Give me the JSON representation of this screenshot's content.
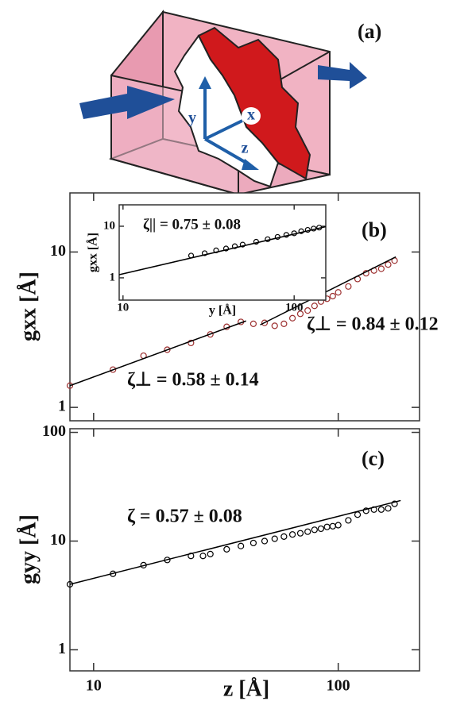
{
  "diagram": {
    "label": "(a)",
    "axis_labels": [
      "x",
      "y",
      "z"
    ]
  },
  "chart_data": [
    {
      "type": "scatter",
      "label": "(b)",
      "ylabel": "gxx [Å]",
      "log_x": true,
      "log_y": true,
      "xlim": [
        8,
        215
      ],
      "ylim": [
        0.82,
        24
      ],
      "xticks": [
        10,
        100
      ],
      "yticks": [
        1,
        10
      ],
      "annotations": [
        "ζ⊥ = 0.58 ± 0.14",
        "ζ⊥ = 0.84 ± 0.12"
      ],
      "series": [
        {
          "color": "#9c2f2f",
          "marker": "circle",
          "x": [
            8,
            12,
            16,
            20,
            25,
            30,
            35,
            40,
            45,
            50,
            55,
            60,
            65,
            70,
            75,
            80,
            85,
            90,
            95,
            100,
            110,
            120,
            130,
            140,
            150,
            160,
            170
          ],
          "values": [
            1.38,
            1.75,
            2.15,
            2.35,
            2.6,
            2.95,
            3.3,
            3.55,
            3.45,
            3.5,
            3.35,
            3.45,
            3.75,
            4.0,
            4.2,
            4.5,
            4.8,
            5.0,
            5.2,
            5.5,
            6.0,
            6.7,
            7.3,
            7.6,
            7.8,
            8.3,
            8.8
          ]
        },
        {
          "color": "#000000",
          "marker": "line",
          "x": [
            8,
            42
          ],
          "values": [
            1.38,
            3.6
          ]
        },
        {
          "color": "#000000",
          "marker": "line",
          "x": [
            48,
            172
          ],
          "values": [
            3.4,
            9.3
          ]
        }
      ]
    },
    {
      "type": "scatter",
      "xlabel": "y [Å]",
      "ylabel": "gxx [Å]",
      "log_x": true,
      "log_y": true,
      "xlim": [
        9.5,
        153
      ],
      "ylim": [
        0.37,
        26
      ],
      "xticks": [
        10,
        100
      ],
      "yticks": [
        1,
        10
      ],
      "annotations": [
        "ζ|| = 0.75 ± 0.08"
      ],
      "series": [
        {
          "color": "#000000",
          "marker": "circle",
          "x": [
            25,
            30,
            35,
            40,
            45,
            50,
            60,
            70,
            80,
            90,
            100,
            110,
            120,
            130,
            140
          ],
          "values": [
            2.7,
            3.0,
            3.4,
            3.7,
            4.1,
            4.4,
            5.0,
            5.6,
            6.2,
            6.8,
            7.3,
            8.0,
            8.5,
            9.0,
            9.4
          ]
        },
        {
          "color": "#000000",
          "marker": "line",
          "x": [
            9.5,
            153
          ],
          "values": [
            1.15,
            9.8
          ]
        }
      ]
    },
    {
      "type": "scatter",
      "label": "(c)",
      "xlabel": "z [Å]",
      "ylabel": "gyy [Å]",
      "log_x": true,
      "log_y": true,
      "xlim": [
        8,
        215
      ],
      "ylim": [
        0.64,
        108
      ],
      "xticks": [
        10,
        100
      ],
      "yticks": [
        1,
        10,
        100
      ],
      "annotations": [
        "ζ = 0.57 ± 0.08"
      ],
      "series": [
        {
          "color": "#000000",
          "marker": "circle",
          "x": [
            8,
            12,
            16,
            20,
            25,
            28,
            30,
            35,
            40,
            45,
            50,
            55,
            60,
            65,
            70,
            75,
            80,
            85,
            90,
            95,
            100,
            110,
            120,
            130,
            140,
            150,
            160,
            170
          ],
          "values": [
            4.0,
            5.0,
            6.0,
            6.7,
            7.3,
            7.3,
            7.6,
            8.4,
            9.0,
            9.6,
            10.0,
            10.5,
            11.0,
            11.5,
            11.8,
            12.2,
            12.7,
            13.0,
            13.5,
            13.7,
            14.0,
            15.5,
            17.5,
            19.0,
            19.5,
            19.5,
            20.0,
            22.0
          ]
        },
        {
          "color": "#000000",
          "marker": "line",
          "x": [
            8,
            180
          ],
          "values": [
            4.0,
            23.6
          ]
        }
      ]
    }
  ]
}
